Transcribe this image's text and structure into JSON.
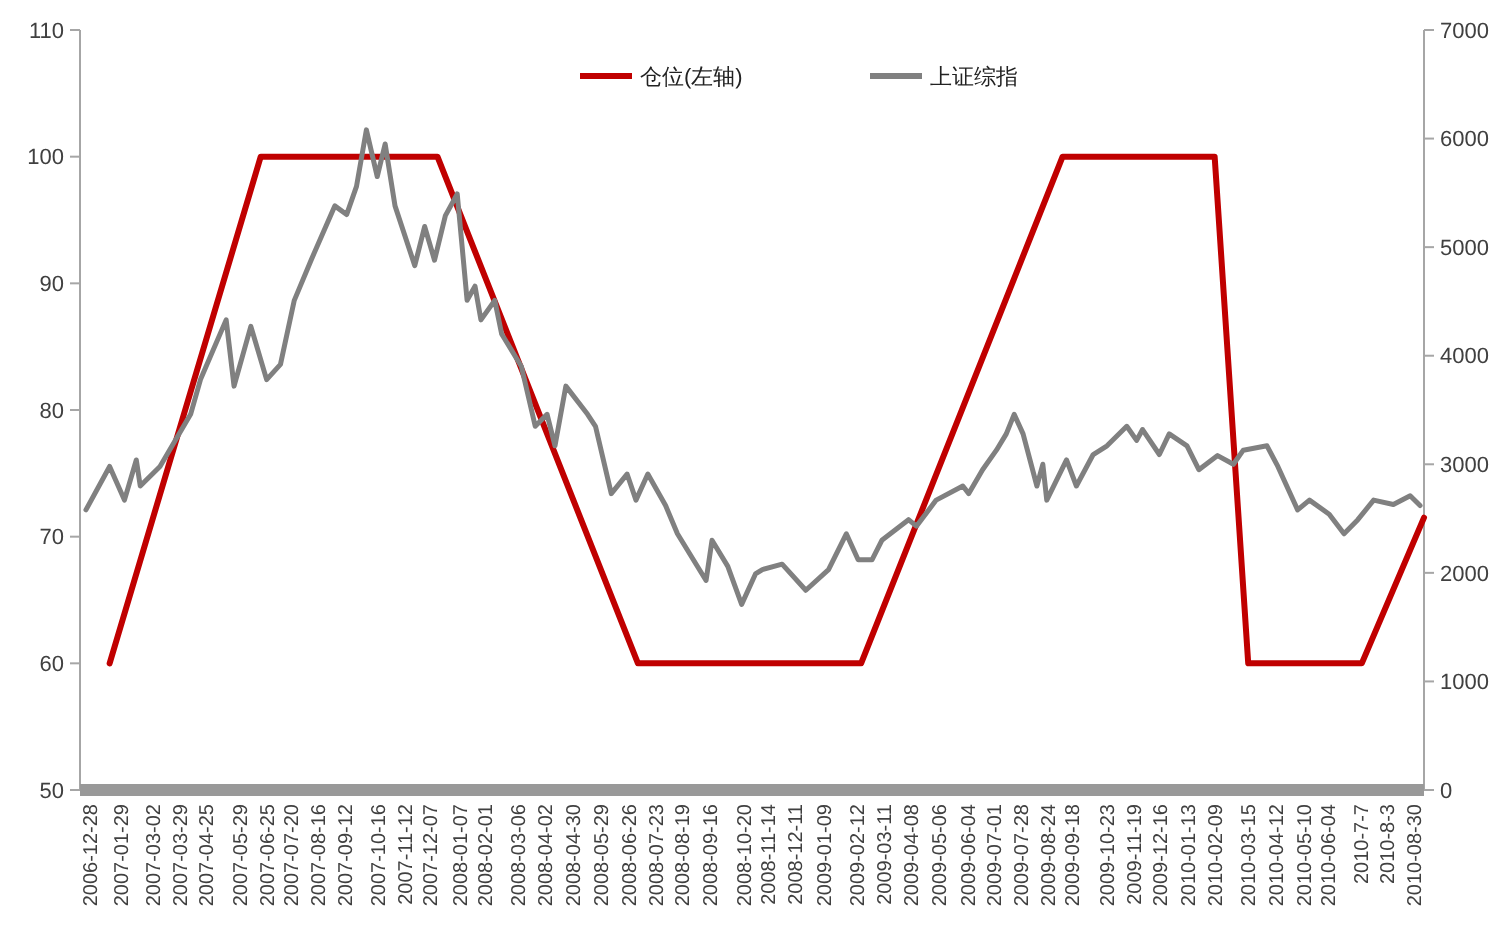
{
  "chart_data": {
    "type": "line",
    "xlim": [
      "2006-12-18",
      "2010-09-09"
    ],
    "xticks": [
      "2006-12-28",
      "2007-01-29",
      "2007-03-02",
      "2007-03-29",
      "2007-04-25",
      "2007-05-29",
      "2007-06-25",
      "2007-07-20",
      "2007-08-16",
      "2007-09-12",
      "2007-10-16",
      "2007-11-12",
      "2007-12-07",
      "2008-01-07",
      "2008-02-01",
      "2008-03-06",
      "2008-04-02",
      "2008-04-30",
      "2008-05-29",
      "2008-06-26",
      "2008-07-23",
      "2008-08-19",
      "2008-09-16",
      "2008-10-20",
      "2008-11-14",
      "2008-12-11",
      "2009-01-09",
      "2009-02-12",
      "2009-03-11",
      "2009-04-08",
      "2009-05-06",
      "2009-06-04",
      "2009-07-01",
      "2009-07-28",
      "2009-08-24",
      "2009-09-18",
      "2009-10-23",
      "2009-11-19",
      "2009-12-16",
      "2010-01-13",
      "2010-02-09",
      "2010-03-15",
      "2010-04-12",
      "2010-05-10",
      "2010-06-04",
      {
        "value": "2010-07-07",
        "label": "2010-7-7"
      },
      {
        "value": "2010-08-03",
        "label": "2010-8-3"
      },
      "2010-08-30"
    ],
    "ylim": [
      50,
      110
    ],
    "yticks": [
      50,
      60,
      70,
      80,
      90,
      100,
      110
    ],
    "y2lim": [
      0,
      7000
    ],
    "y2ticks": [
      0,
      1000,
      2000,
      3000,
      4000,
      5000,
      6000,
      7000
    ],
    "legend": "top",
    "grid": false,
    "marker": "none",
    "series": [
      {
        "name": "仓位(左轴)",
        "color": "#c00000",
        "x": [
          "2007-01-17",
          "2007-06-19",
          "2007-12-15",
          "2008-07-05",
          "2009-02-16",
          "2009-09-08",
          "2010-02-09",
          "2010-03-15",
          "2010-07-08",
          "2010-09-09"
        ],
        "values": [
          60,
          100,
          100,
          60,
          60,
          100,
          100,
          60,
          60,
          71.5
        ]
      },
      {
        "name": "上证综指",
        "color": "#808080",
        "axis": "y2",
        "x": [
          "2006-12-24",
          "2007-01-17",
          "2007-02-01",
          "2007-02-13",
          "2007-02-17",
          "2007-03-09",
          "2007-04-09",
          "2007-04-19",
          "2007-05-15",
          "2007-05-23",
          "2007-06-09",
          "2007-06-25",
          "2007-07-09",
          "2007-07-23",
          "2007-08-09",
          "2007-09-02",
          "2007-09-14",
          "2007-09-24",
          "2007-10-04",
          "2007-10-15",
          "2007-10-23",
          "2007-11-02",
          "2007-11-22",
          "2007-12-02",
          "2007-12-12",
          "2007-12-23",
          "2008-01-04",
          "2008-01-14",
          "2008-01-22",
          "2008-01-28",
          "2008-02-11",
          "2008-02-18",
          "2008-03-09",
          "2008-03-23",
          "2008-04-04",
          "2008-04-12",
          "2008-04-23",
          "2008-05-15",
          "2008-05-23",
          "2008-06-08",
          "2008-06-24",
          "2008-07-03",
          "2008-07-15",
          "2008-08-02",
          "2008-08-14",
          "2008-09-12",
          "2008-09-18",
          "2008-10-04",
          "2008-10-18",
          "2008-11-01",
          "2008-11-08",
          "2008-11-28",
          "2008-12-22",
          "2009-01-14",
          "2009-02-01",
          "2009-02-13",
          "2009-02-27",
          "2009-03-09",
          "2009-04-05",
          "2009-04-13",
          "2009-05-03",
          "2009-05-30",
          "2009-06-05",
          "2009-06-19",
          "2009-07-03",
          "2009-07-13",
          "2009-07-21",
          "2009-07-30",
          "2009-08-13",
          "2009-08-19",
          "2009-08-23",
          "2009-09-12",
          "2009-09-22",
          "2009-10-09",
          "2009-10-23",
          "2009-11-12",
          "2009-11-22",
          "2009-11-28",
          "2009-12-15",
          "2009-12-25",
          "2010-01-12",
          "2010-01-24",
          "2010-02-12",
          "2010-02-28",
          "2010-03-10",
          "2010-04-03",
          "2010-04-14",
          "2010-05-04",
          "2010-05-16",
          "2010-06-05",
          "2010-06-20",
          "2010-07-04",
          "2010-07-20",
          "2010-08-09",
          "2010-08-26",
          "2010-09-05"
        ],
        "values": [
          2580,
          2980,
          2670,
          3040,
          2800,
          2980,
          3460,
          3780,
          4330,
          3720,
          4270,
          3780,
          3920,
          4510,
          4880,
          5380,
          5300,
          5560,
          6080,
          5650,
          5950,
          5380,
          4830,
          5190,
          4880,
          5290,
          5490,
          4510,
          4640,
          4330,
          4510,
          4200,
          3900,
          3350,
          3460,
          3170,
          3720,
          3460,
          3350,
          2730,
          2910,
          2670,
          2910,
          2620,
          2360,
          1930,
          2300,
          2060,
          1710,
          1990,
          2030,
          2080,
          1840,
          2030,
          2360,
          2120,
          2120,
          2300,
          2490,
          2430,
          2670,
          2800,
          2730,
          2950,
          3130,
          3280,
          3460,
          3280,
          2800,
          3000,
          2670,
          3040,
          2800,
          3090,
          3170,
          3350,
          3220,
          3320,
          3090,
          3280,
          3170,
          2950,
          3080,
          3000,
          3130,
          3170,
          2980,
          2580,
          2670,
          2540,
          2360,
          2490,
          2670,
          2630,
          2710,
          2620
        ]
      }
    ]
  }
}
